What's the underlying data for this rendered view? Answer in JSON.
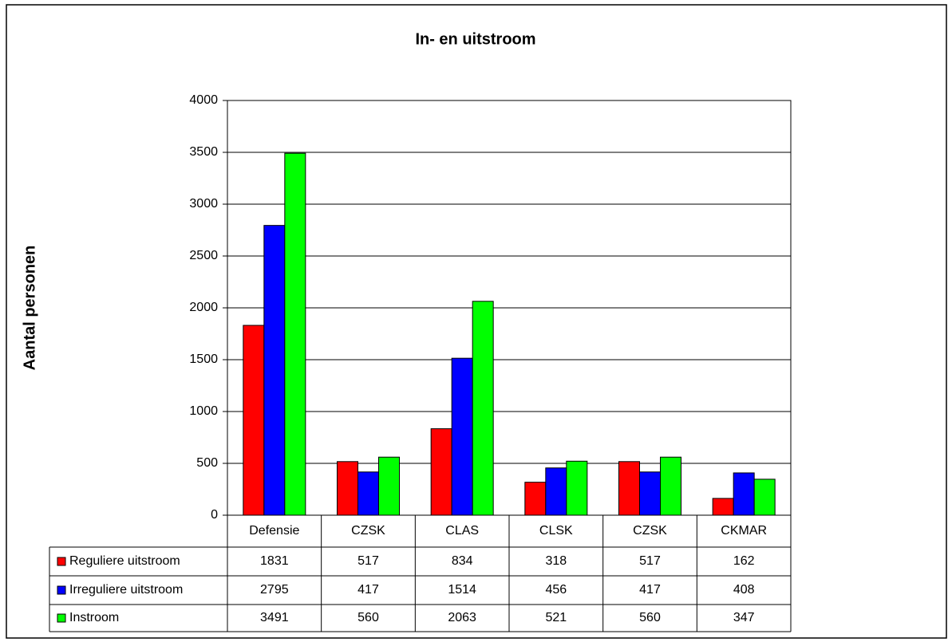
{
  "chart_data": {
    "type": "bar",
    "title": "In- en uitstroom",
    "y_label": "Aantal personen",
    "categories": [
      "Defensie",
      "CZSK",
      "CLAS",
      "CLSK",
      "CZSK",
      "CKMAR"
    ],
    "series": [
      {
        "name": "Reguliere uitstroom",
        "color": "#ff0000",
        "values": [
          1831,
          517,
          834,
          318,
          517,
          162
        ]
      },
      {
        "name": "Irreguliere uitstroom",
        "color": "#0000ff",
        "values": [
          2795,
          417,
          1514,
          456,
          417,
          408
        ]
      },
      {
        "name": "Instroom",
        "color": "#00ff00",
        "values": [
          3491,
          560,
          2063,
          521,
          560,
          347
        ]
      }
    ],
    "ylim": [
      0,
      4000
    ],
    "yticks": [
      0,
      500,
      1000,
      1500,
      2000,
      2500,
      3000,
      3500,
      4000
    ],
    "grid": true,
    "data_table": true
  }
}
